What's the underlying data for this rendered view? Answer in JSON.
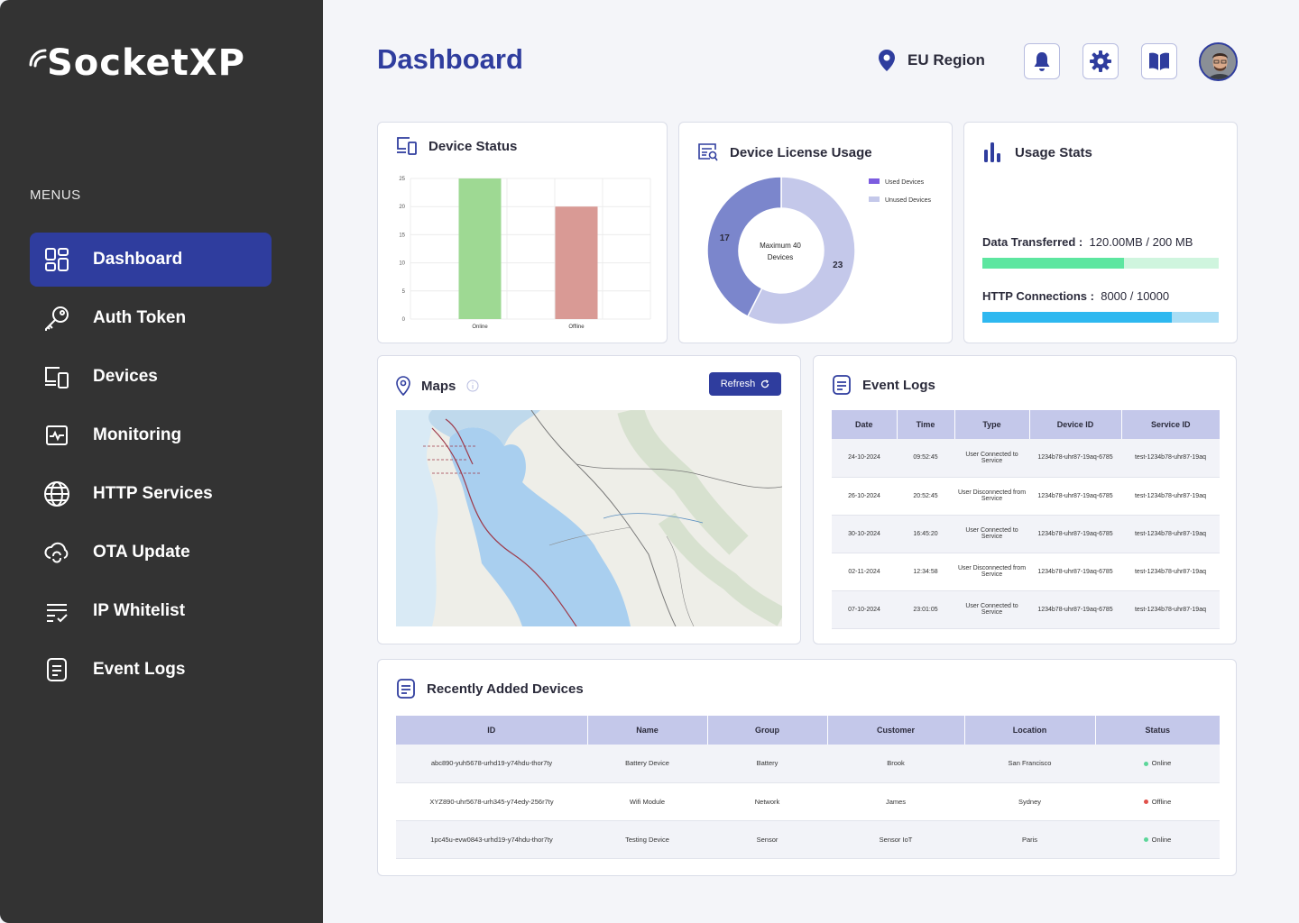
{
  "app": {
    "logo": "SocketXP"
  },
  "sidebar": {
    "menus_label": "MENUS",
    "items": [
      {
        "label": "Dashboard",
        "icon": "grid-icon"
      },
      {
        "label": "Auth Token",
        "icon": "key-icon"
      },
      {
        "label": "Devices",
        "icon": "devices-icon"
      },
      {
        "label": "Monitoring",
        "icon": "monitor-pulse-icon"
      },
      {
        "label": "HTTP Services",
        "icon": "globe-icon"
      },
      {
        "label": "OTA Update",
        "icon": "cloud-sync-icon"
      },
      {
        "label": "IP Whitelist",
        "icon": "list-check-icon"
      },
      {
        "label": "Event Logs",
        "icon": "document-icon"
      }
    ]
  },
  "header": {
    "title": "Dashboard",
    "region": "EU Region"
  },
  "device_status": {
    "title": "Device Status",
    "chart_data": {
      "type": "bar",
      "categories": [
        "Online",
        "Offline"
      ],
      "values": [
        25,
        20
      ],
      "ylim": [
        0,
        25
      ],
      "yticks": [
        "25",
        "20",
        "15",
        "10",
        "5",
        "0"
      ],
      "colors": [
        "#9ED993",
        "#D99A95"
      ]
    }
  },
  "license": {
    "title": "Device License Usage",
    "center_text_1": "Maximum 40",
    "center_text_2": "Devices",
    "chart_data": {
      "type": "pie",
      "labels": [
        "Used Devices",
        "Unused Devices"
      ],
      "values": [
        17,
        23
      ],
      "value_labels": [
        "17",
        "23"
      ],
      "colors": [
        "#7B86CC",
        "#C4C8EA"
      ]
    }
  },
  "usage": {
    "title": "Usage Stats",
    "data_label": "Data Transferred :",
    "data_value": "120.00MB / 200 MB",
    "data_fraction": 0.6,
    "http_label": "HTTP Connections :",
    "http_value": "8000 / 10000",
    "http_fraction": 0.8
  },
  "maps": {
    "title": "Maps",
    "refresh": "Refresh"
  },
  "event_logs": {
    "title": "Event Logs",
    "columns": [
      "Date",
      "Time",
      "Type",
      "Device ID",
      "Service ID"
    ],
    "rows": [
      [
        "24-10-2024",
        "09:52:45",
        "User Connected to Service",
        "1234b78-uhr87-19aq-6785",
        "test-1234b78-uhr87-19aq"
      ],
      [
        "26-10-2024",
        "20:52:45",
        "User Disconnected from Service",
        "1234b78-uhr87-19aq-6785",
        "test-1234b78-uhr87-19aq"
      ],
      [
        "30-10-2024",
        "16:45:20",
        "User Connected to Service",
        "1234b78-uhr87-19aq-6785",
        "test-1234b78-uhr87-19aq"
      ],
      [
        "02-11-2024",
        "12:34:58",
        "User Disconnected from Service",
        "1234b78-uhr87-19aq-6785",
        "test-1234b78-uhr87-19aq"
      ],
      [
        "07-10-2024",
        "23:01:05",
        "User Connected to Service",
        "1234b78-uhr87-19aq-6785",
        "test-1234b78-uhr87-19aq"
      ]
    ]
  },
  "recent_devices": {
    "title": "Recently Added Devices",
    "columns": [
      "ID",
      "Name",
      "Group",
      "Customer",
      "Location",
      "Status"
    ],
    "rows": [
      {
        "id": "abc890-yuh5678-urhd19-y74hdu-thor7ty",
        "name": "Battery Device",
        "group": "Battery",
        "customer": "Brook",
        "location": "San Francisco",
        "status": "Online",
        "status_color": "#5CD69A"
      },
      {
        "id": "XYZ890-uhr5678-urh345-y74edy-256r7ty",
        "name": "Wifi Module",
        "group": "Network",
        "customer": "James",
        "location": "Sydney",
        "status": "Offline",
        "status_color": "#E0504A"
      },
      {
        "id": "1pc45u-evw0843-urhd19-y74hdu-thor7ty",
        "name": "Testing Device",
        "group": "Sensor",
        "customer": "Sensor IoT",
        "location": "Paris",
        "status": "Online",
        "status_color": "#5CD69A"
      }
    ]
  }
}
